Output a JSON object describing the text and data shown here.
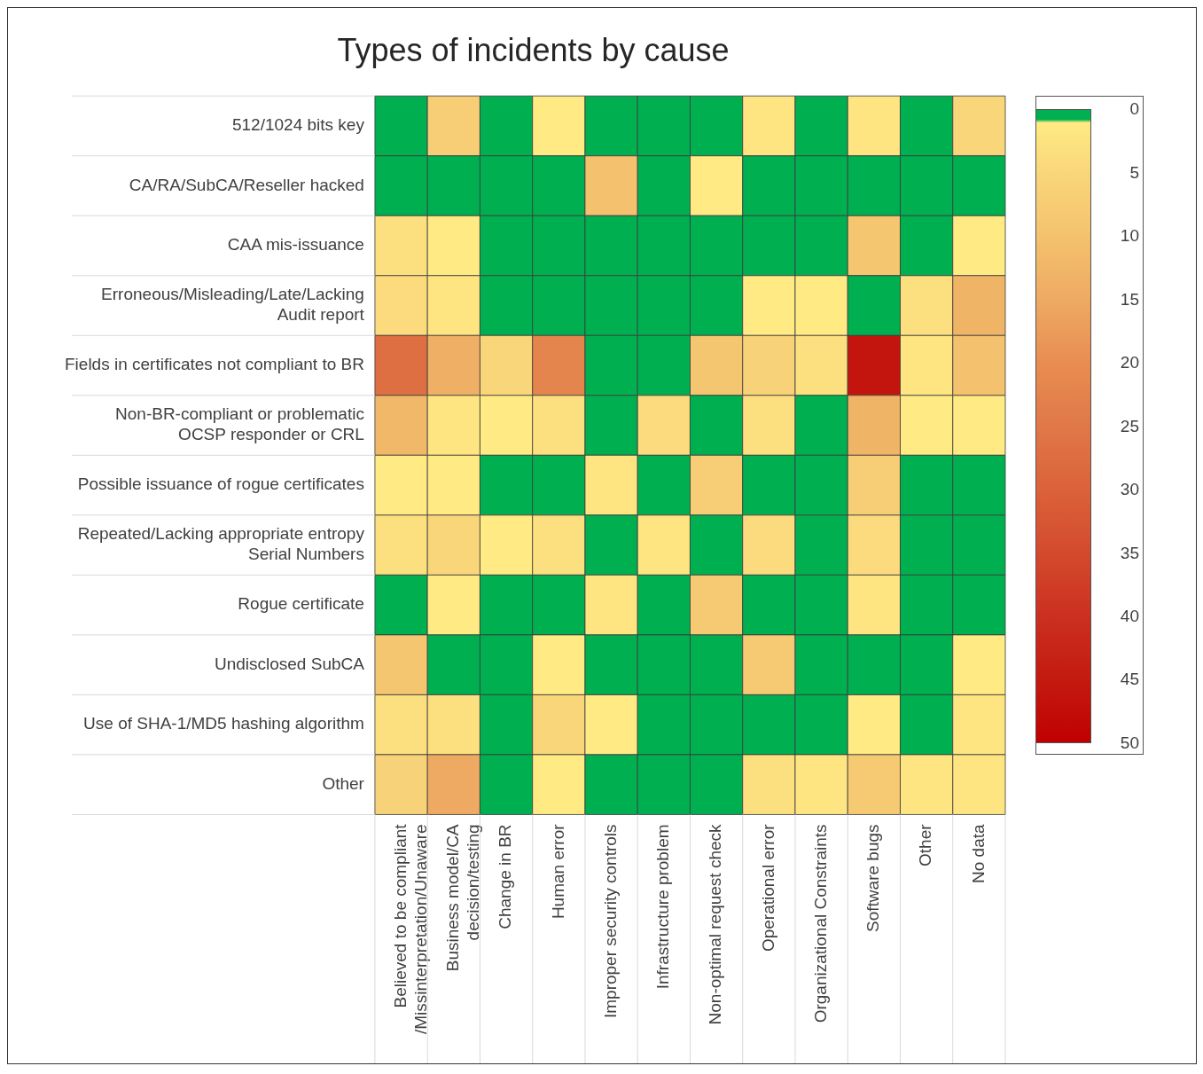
{
  "chart_data": {
    "type": "heatmap",
    "title": "Types of incidents by cause",
    "categories": [
      "Believed to be compliant /Missinterpretation/Unaware",
      "Business model/CA decision/testing",
      "Change in BR",
      "Human error",
      "Improper security controls",
      "Infrastructure problem",
      "Non-optimal request check",
      "Operational error",
      "Organizational Constraints",
      "Software bugs",
      "Other",
      "No data"
    ],
    "y_categories": [
      "512/1024 bits key",
      "CA/RA/SubCA/Reseller hacked",
      "CAA mis-issuance",
      "Erroneous/Misleading/Late/Lacking Audit report",
      "Fields in certificates not compliant to BR",
      "Non-BR-compliant or problematic OCSP responder or CRL",
      "Possible issuance of rogue certificates",
      "Repeated/Lacking appropriate entropy Serial Numbers",
      "Rogue certificate",
      "Undisclosed SubCA",
      "Use of SHA-1/MD5  hashing algorithm",
      "Other"
    ],
    "cells": [
      [
        0,
        7,
        0,
        1,
        0,
        0,
        0,
        2,
        0,
        2,
        0,
        5
      ],
      [
        0,
        0,
        0,
        0,
        10,
        0,
        1,
        0,
        0,
        0,
        0,
        0
      ],
      [
        3,
        1,
        0,
        0,
        0,
        0,
        0,
        0,
        0,
        9,
        0,
        1
      ],
      [
        4,
        2,
        0,
        0,
        0,
        0,
        0,
        1,
        1,
        0,
        3,
        13
      ],
      [
        27,
        14,
        5,
        22,
        0,
        0,
        9,
        6,
        3,
        46,
        2,
        10
      ],
      [
        12,
        2,
        1,
        3,
        0,
        4,
        0,
        3,
        0,
        13,
        1,
        1
      ],
      [
        1,
        1,
        0,
        0,
        2,
        0,
        7,
        0,
        0,
        7,
        0,
        0
      ],
      [
        3,
        5,
        1,
        3,
        0,
        2,
        0,
        4,
        0,
        4,
        0,
        0
      ],
      [
        0,
        1,
        0,
        0,
        2,
        0,
        8,
        0,
        0,
        2,
        0,
        0
      ],
      [
        9,
        0,
        0,
        1,
        0,
        0,
        0,
        8,
        0,
        0,
        0,
        1
      ],
      [
        3,
        3,
        0,
        5,
        1,
        0,
        0,
        0,
        0,
        1,
        0,
        2
      ],
      [
        6,
        15,
        0,
        1,
        0,
        0,
        0,
        3,
        2,
        8,
        2,
        2
      ]
    ],
    "clim": [
      0,
      50
    ],
    "cticks": [
      0,
      5,
      10,
      15,
      20,
      25,
      30,
      35,
      40,
      45,
      50
    ]
  }
}
